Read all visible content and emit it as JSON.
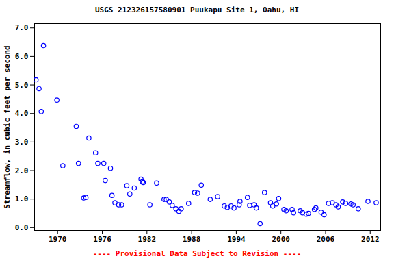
{
  "chart_data": {
    "type": "scatter",
    "title": "USGS 212326157580901 Puukapu Site 1, Oahu, HI",
    "y_label": "Streamflow, in cubic feet per second",
    "caption": "---- Provisional Data Subject to Revision ----",
    "color": "#0000ff",
    "marker": "circle",
    "grid": false,
    "xlim": [
      1966.9,
      2013.4
    ],
    "xticks": [
      1970,
      1976,
      1982,
      1988,
      1994,
      2000,
      2006,
      2012
    ],
    "ylim": [
      -0.1,
      7.15
    ],
    "yticks": [
      {
        "value": 0,
        "label": "0.0"
      },
      {
        "value": 1,
        "label": "1.0"
      },
      {
        "value": 2,
        "label": "2.0"
      },
      {
        "value": 3,
        "label": "3.0"
      },
      {
        "value": 4,
        "label": "4.0"
      },
      {
        "value": 5,
        "label": "5.0"
      },
      {
        "value": 6,
        "label": "6.0"
      },
      {
        "value": 7,
        "label": "7.0"
      }
    ],
    "x": [
      1967.1,
      1967.5,
      1967.8,
      1968.1,
      1969.9,
      1970.7,
      1972.5,
      1972.8,
      1973.5,
      1973.8,
      1974.2,
      1975.1,
      1975.4,
      1976.2,
      1976.4,
      1977.1,
      1977.3,
      1977.7,
      1978.2,
      1978.6,
      1979.3,
      1979.7,
      1980.3,
      1981.2,
      1981.4,
      1981.5,
      1982.4,
      1983.3,
      1984.3,
      1984.6,
      1985.0,
      1985.4,
      1985.9,
      1986.3,
      1986.6,
      1987.6,
      1988.4,
      1988.8,
      1989.3,
      1990.5,
      1991.5,
      1992.4,
      1992.8,
      1993.3,
      1993.7,
      1994.4,
      1994.5,
      1995.5,
      1995.8,
      1996.4,
      1996.7,
      1997.2,
      1997.8,
      1998.6,
      1998.9,
      1999.4,
      1999.7,
      2000.4,
      2000.7,
      2001.5,
      2001.7,
      2002.6,
      2002.9,
      2003.4,
      2003.7,
      2004.5,
      2004.7,
      2005.4,
      2005.8,
      2006.4,
      2006.9,
      2007.4,
      2007.7,
      2008.3,
      2008.7,
      2009.4,
      2009.7,
      2010.4,
      2011.7,
      2012.8
    ],
    "values": [
      5.18,
      4.87,
      4.07,
      6.38,
      4.47,
      2.17,
      3.55,
      2.25,
      1.04,
      1.06,
      3.14,
      2.62,
      2.25,
      2.25,
      1.65,
      2.08,
      1.13,
      0.87,
      0.8,
      0.8,
      1.47,
      1.18,
      1.39,
      1.7,
      1.61,
      1.58,
      0.8,
      1.56,
      0.99,
      0.99,
      0.9,
      0.78,
      0.66,
      0.57,
      0.66,
      0.85,
      1.23,
      1.21,
      1.49,
      0.99,
      1.09,
      0.76,
      0.71,
      0.76,
      0.69,
      0.8,
      0.92,
      1.06,
      0.78,
      0.8,
      0.69,
      0.14,
      1.23,
      0.87,
      0.76,
      0.83,
      1.02,
      0.64,
      0.59,
      0.64,
      0.52,
      0.59,
      0.52,
      0.47,
      0.5,
      0.64,
      0.69,
      0.54,
      0.45,
      0.85,
      0.87,
      0.8,
      0.73,
      0.9,
      0.85,
      0.83,
      0.8,
      0.66,
      0.92,
      0.87
    ]
  }
}
